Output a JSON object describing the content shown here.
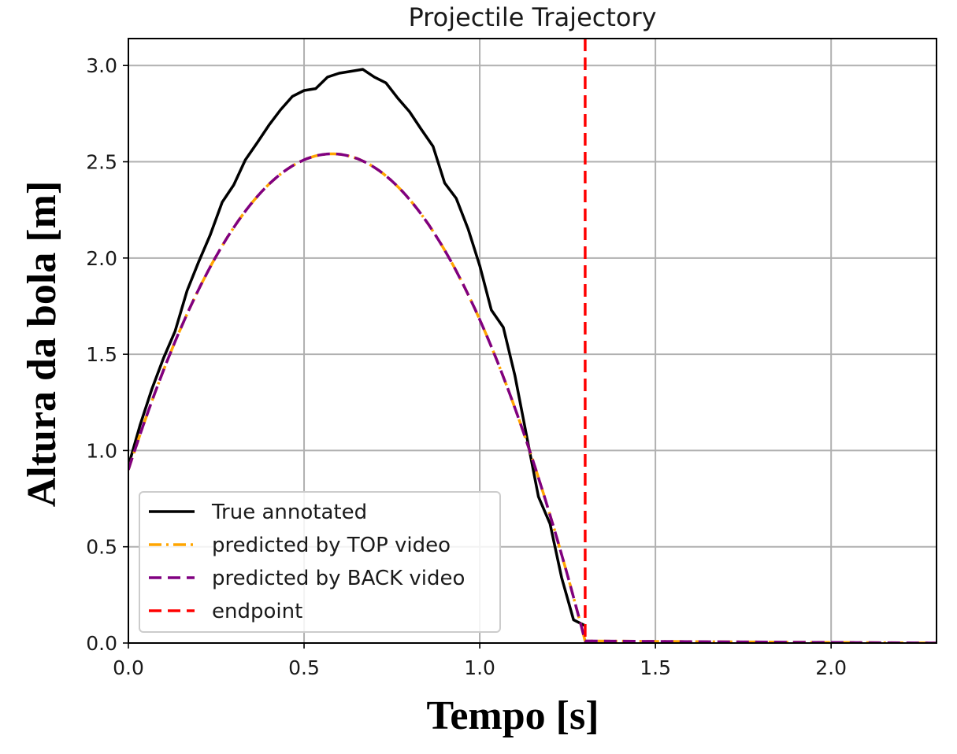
{
  "chart_data": {
    "type": "line",
    "title": "Projectile Trajectory",
    "xlabel": "Tempo [s]",
    "ylabel": "Altura da bola [m]",
    "xlim": [
      0.0,
      2.3
    ],
    "ylim": [
      0.0,
      3.14
    ],
    "xticks": [
      0.0,
      0.5,
      1.0,
      1.5,
      2.0
    ],
    "xtick_labels": [
      "0.0",
      "0.5",
      "1.0",
      "1.5",
      "2.0"
    ],
    "yticks": [
      0.0,
      0.5,
      1.0,
      1.5,
      2.0,
      2.5,
      3.0
    ],
    "ytick_labels": [
      "0.0",
      "0.5",
      "1.0",
      "1.5",
      "2.0",
      "2.5",
      "3.0"
    ],
    "grid": true,
    "legend_position": "lower-left",
    "series": [
      {
        "name": "True annotated",
        "color": "#000000",
        "style": "solid",
        "x": [
          0.0,
          0.033,
          0.067,
          0.1,
          0.133,
          0.167,
          0.2,
          0.233,
          0.267,
          0.3,
          0.333,
          0.367,
          0.4,
          0.433,
          0.467,
          0.5,
          0.533,
          0.567,
          0.6,
          0.633,
          0.667,
          0.7,
          0.733,
          0.767,
          0.8,
          0.833,
          0.867,
          0.9,
          0.933,
          0.967,
          1.0,
          1.033,
          1.067,
          1.1,
          1.133,
          1.167,
          1.2,
          1.233,
          1.267,
          1.3
        ],
        "y": [
          0.92,
          1.13,
          1.32,
          1.48,
          1.62,
          1.83,
          1.98,
          2.12,
          2.29,
          2.38,
          2.51,
          2.6,
          2.69,
          2.77,
          2.84,
          2.87,
          2.88,
          2.94,
          2.96,
          2.97,
          2.98,
          2.94,
          2.91,
          2.83,
          2.76,
          2.67,
          2.58,
          2.39,
          2.31,
          2.15,
          1.96,
          1.73,
          1.64,
          1.39,
          1.08,
          0.76,
          0.62,
          0.34,
          0.12,
          0.09
        ]
      },
      {
        "name": "predicted by TOP video",
        "color": "#ffa500",
        "style": "dashdot",
        "fit": {
          "a": -4.88,
          "b": 5.66,
          "c": 0.9,
          "t_end": 1.3
        }
      },
      {
        "name": "predicted by BACK video",
        "color": "#800080",
        "style": "dashed",
        "fit": {
          "a": -4.88,
          "b": 5.66,
          "c": 0.9,
          "t_end": 1.3
        }
      },
      {
        "name": "endpoint",
        "color": "#ff0000",
        "style": "dashed",
        "vline_x": 1.3
      }
    ]
  }
}
